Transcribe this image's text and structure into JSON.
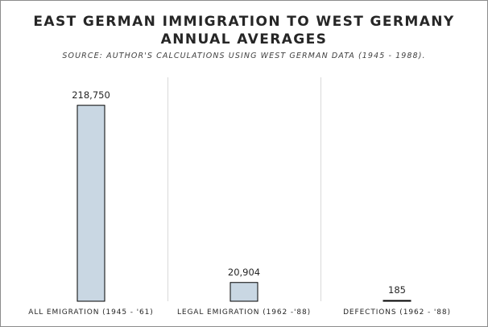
{
  "title_line1": "EAST GERMAN IMMIGRATION TO WEST GERMANY",
  "title_line2": "ANNUAL AVERAGES",
  "subtitle": "SOURCE: AUTHOR'S CALCULATIONS USING WEST GERMAN DATA (1945 - 1988).",
  "chart_data": {
    "type": "bar",
    "title": "EAST GERMAN IMMIGRATION TO WEST GERMANY ANNUAL AVERAGES",
    "subtitle": "SOURCE: AUTHOR'S CALCULATIONS USING WEST GERMAN DATA (1945 - 1988).",
    "categories": [
      "ALL EMIGRATION (1945 - '61)",
      "LEGAL EMIGRATION (1962 -'88)",
      "DEFECTIONS (1962 - '88)"
    ],
    "values": [
      218750,
      20904,
      185
    ],
    "data_labels": [
      "218,750",
      "20,904",
      "185"
    ],
    "xlabel": "",
    "ylabel": "",
    "ylim": [
      0,
      250000
    ],
    "grid": "vertical category separators",
    "legend": "none",
    "bar_color": "#c9d7e3",
    "bar_edge_color": "#000000",
    "separator_color": "#d9d9d9"
  }
}
